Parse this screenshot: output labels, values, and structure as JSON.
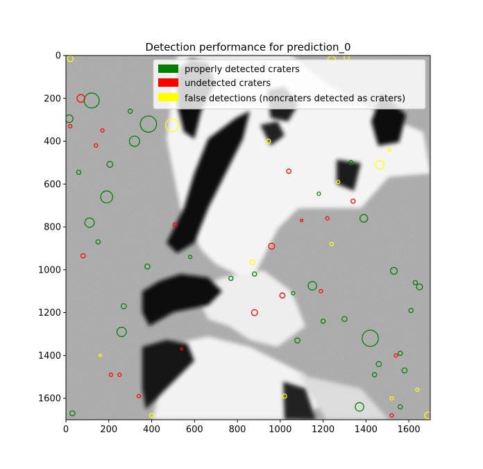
{
  "chart_data": {
    "type": "image-overlay",
    "title": "Detection performance for prediction_0",
    "xlim": [
      0,
      1700
    ],
    "ylim": [
      1700,
      0
    ],
    "xticks": [
      0,
      200,
      400,
      600,
      800,
      1000,
      1200,
      1400,
      1600
    ],
    "yticks": [
      0,
      200,
      400,
      600,
      800,
      1000,
      1200,
      1400,
      1600
    ],
    "legend_position": "top-right",
    "series": [
      {
        "name": "properly detected craters",
        "color": "#008000",
        "circles": [
          [
            15,
            295,
            18
          ],
          [
            120,
            210,
            35
          ],
          [
            385,
            320,
            38
          ],
          [
            320,
            400,
            24
          ],
          [
            190,
            660,
            28
          ],
          [
            110,
            780,
            22
          ],
          [
            1420,
            1320,
            38
          ],
          [
            1150,
            1075,
            20
          ],
          [
            880,
            1020,
            10
          ],
          [
            1390,
            760,
            18
          ],
          [
            1650,
            1080,
            14
          ],
          [
            1370,
            1640,
            20
          ],
          [
            1530,
            1005,
            16
          ],
          [
            1330,
            500,
            10
          ],
          [
            1460,
            1440,
            12
          ],
          [
            260,
            1290,
            22
          ],
          [
            205,
            508,
            14
          ],
          [
            380,
            985,
            12
          ],
          [
            770,
            1040,
            10
          ],
          [
            1180,
            645,
            8
          ],
          [
            1440,
            1490,
            10
          ],
          [
            1060,
            1110,
            8
          ],
          [
            1200,
            1240,
            10
          ],
          [
            1580,
            1470,
            12
          ],
          [
            60,
            545,
            10
          ],
          [
            150,
            870,
            10
          ],
          [
            30,
            1670,
            12
          ],
          [
            1560,
            1640,
            10
          ],
          [
            300,
            260,
            10
          ],
          [
            270,
            1170,
            12
          ],
          [
            1300,
            1230,
            12
          ],
          [
            580,
            940,
            8
          ],
          [
            1630,
            1060,
            10
          ],
          [
            1560,
            1390,
            10
          ],
          [
            1610,
            1190,
            10
          ],
          [
            1080,
            1330,
            12
          ]
        ]
      },
      {
        "name": "undetected craters",
        "color": "#ff0000",
        "circles": [
          [
            70,
            200,
            18
          ],
          [
            960,
            890,
            14
          ],
          [
            880,
            1200,
            14
          ],
          [
            1010,
            1120,
            12
          ],
          [
            80,
            935,
            10
          ],
          [
            1040,
            540,
            10
          ],
          [
            1340,
            680,
            10
          ],
          [
            20,
            330,
            8
          ],
          [
            540,
            1370,
            6
          ],
          [
            510,
            790,
            10
          ],
          [
            140,
            420,
            8
          ],
          [
            1540,
            1400,
            8
          ],
          [
            170,
            350,
            8
          ],
          [
            1190,
            1100,
            8
          ],
          [
            1220,
            760,
            8
          ],
          [
            210,
            1490,
            8
          ],
          [
            1100,
            770,
            6
          ],
          [
            250,
            1490,
            8
          ],
          [
            340,
            1590,
            8
          ],
          [
            1520,
            1680,
            8
          ]
        ]
      },
      {
        "name": "false detections (noncraters detected as craters)",
        "color": "#ffff00",
        "circles": [
          [
            495,
            325,
            30
          ],
          [
            1465,
            510,
            20
          ],
          [
            1690,
            1680,
            16
          ],
          [
            870,
            965,
            12
          ],
          [
            945,
            400,
            10
          ],
          [
            1510,
            440,
            8
          ],
          [
            1020,
            1590,
            10
          ],
          [
            1640,
            1560,
            8
          ],
          [
            1240,
            880,
            8
          ],
          [
            1270,
            590,
            8
          ],
          [
            1520,
            1600,
            8
          ],
          [
            160,
            1400,
            6
          ],
          [
            400,
            1680,
            10
          ],
          [
            1240,
            20,
            18
          ],
          [
            1310,
            10,
            12
          ],
          [
            20,
            15,
            14
          ]
        ]
      }
    ]
  }
}
